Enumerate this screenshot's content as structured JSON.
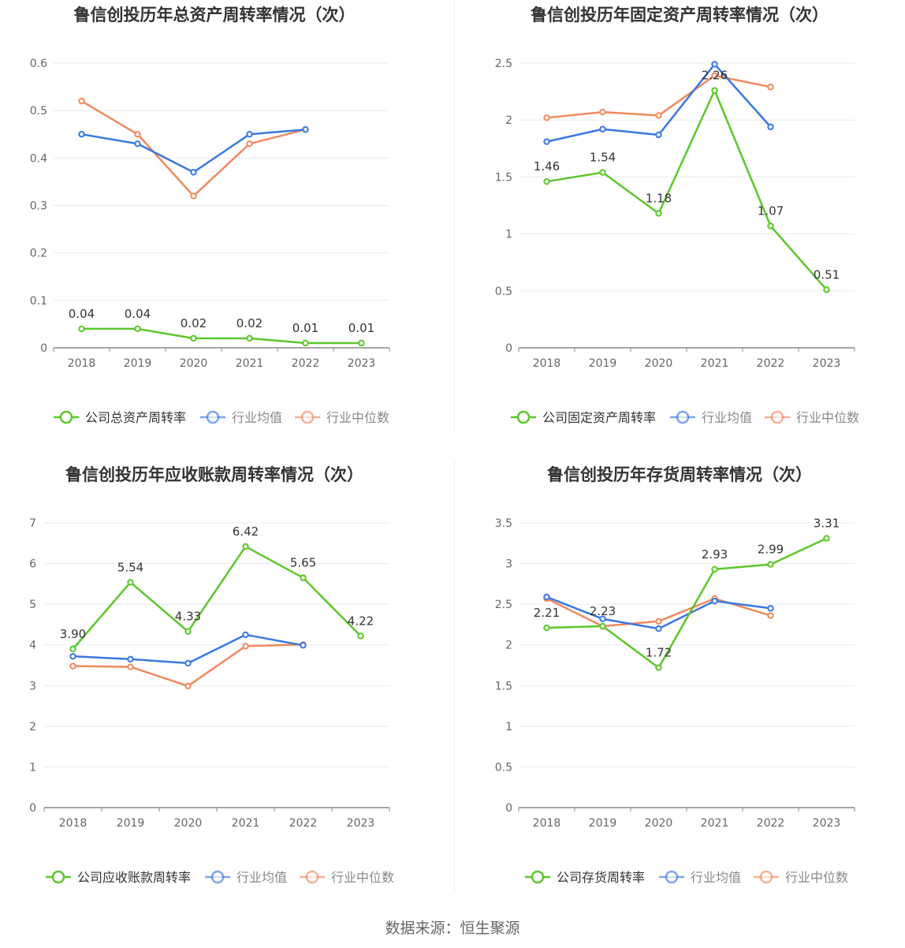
{
  "footer": {
    "source": "数据来源：恒生聚源"
  },
  "colors": {
    "company": "#5bc72b",
    "avg": "#3b78e0",
    "median": "#f0895e",
    "grid": "#e8eaf2",
    "axis": "#888888",
    "text": "#666666",
    "title": "#333333"
  },
  "chart_data": [
    {
      "type": "line",
      "title": "鲁信创投历年总资产周转率情况（次）",
      "categories": [
        "2018",
        "2019",
        "2020",
        "2021",
        "2022",
        "2023"
      ],
      "ylim": [
        0,
        0.6
      ],
      "yticks": [
        "0",
        "0.1",
        "0.2",
        "0.3",
        "0.4",
        "0.5",
        "0.6"
      ],
      "legend_position": "bottom",
      "series": [
        {
          "name": "公司总资产周转率",
          "role": "company",
          "values": [
            0.04,
            0.04,
            0.02,
            0.02,
            0.01,
            0.01
          ],
          "labels": [
            "0.04",
            "0.04",
            "0.02",
            "0.02",
            "0.01",
            "0.01"
          ]
        },
        {
          "name": "行业均值",
          "role": "avg",
          "values": [
            0.45,
            0.43,
            0.37,
            0.45,
            0.46,
            null
          ]
        },
        {
          "name": "行业中位数",
          "role": "median",
          "values": [
            0.52,
            0.45,
            0.32,
            0.43,
            0.46,
            null
          ]
        }
      ]
    },
    {
      "type": "line",
      "title": "鲁信创投历年固定资产周转率情况（次）",
      "categories": [
        "2018",
        "2019",
        "2020",
        "2021",
        "2022",
        "2023"
      ],
      "ylim": [
        0,
        2.5
      ],
      "yticks": [
        "0",
        "0.5",
        "1",
        "1.5",
        "2",
        "2.5"
      ],
      "legend_position": "bottom",
      "series": [
        {
          "name": "公司固定资产周转率",
          "role": "company",
          "values": [
            1.46,
            1.54,
            1.18,
            2.26,
            1.07,
            0.51
          ],
          "labels": [
            "1.46",
            "1.54",
            "1.18",
            "2.26",
            "1.07",
            "0.51"
          ]
        },
        {
          "name": "行业均值",
          "role": "avg",
          "values": [
            1.81,
            1.92,
            1.87,
            2.49,
            1.94,
            null
          ]
        },
        {
          "name": "行业中位数",
          "role": "median",
          "values": [
            2.02,
            2.07,
            2.04,
            2.39,
            2.29,
            null
          ]
        }
      ]
    },
    {
      "type": "line",
      "title": "鲁信创投历年应收账款周转率情况（次）",
      "categories": [
        "2018",
        "2019",
        "2020",
        "2021",
        "2022",
        "2023"
      ],
      "ylim": [
        0,
        7
      ],
      "yticks": [
        "0",
        "1",
        "2",
        "3",
        "4",
        "5",
        "6",
        "7"
      ],
      "legend_position": "bottom",
      "series": [
        {
          "name": "公司应收账款周转率",
          "role": "company",
          "values": [
            3.9,
            5.54,
            4.33,
            6.42,
            5.65,
            4.22
          ],
          "labels": [
            "3.90",
            "5.54",
            "4.33",
            "6.42",
            "5.65",
            "4.22"
          ]
        },
        {
          "name": "行业均值",
          "role": "avg",
          "values": [
            3.72,
            3.65,
            3.55,
            4.25,
            3.99,
            null
          ]
        },
        {
          "name": "行业中位数",
          "role": "median",
          "values": [
            3.48,
            3.46,
            2.99,
            3.97,
            4.01,
            null
          ]
        }
      ]
    },
    {
      "type": "line",
      "title": "鲁信创投历年存货周转率情况（次）",
      "categories": [
        "2018",
        "2019",
        "2020",
        "2021",
        "2022",
        "2023"
      ],
      "ylim": [
        0,
        3.5
      ],
      "yticks": [
        "0",
        "0.5",
        "1",
        "1.5",
        "2",
        "2.5",
        "3",
        "3.5"
      ],
      "legend_position": "bottom",
      "series": [
        {
          "name": "公司存货周转率",
          "role": "company",
          "values": [
            2.21,
            2.23,
            1.72,
            2.93,
            2.99,
            3.31
          ],
          "labels": [
            "2.21",
            "2.23",
            "1.72",
            "2.93",
            "2.99",
            "3.31"
          ]
        },
        {
          "name": "行业均值",
          "role": "avg",
          "values": [
            2.59,
            2.32,
            2.2,
            2.54,
            2.45,
            null
          ]
        },
        {
          "name": "行业中位数",
          "role": "median",
          "values": [
            2.57,
            2.23,
            2.29,
            2.57,
            2.36,
            null
          ]
        }
      ]
    }
  ]
}
